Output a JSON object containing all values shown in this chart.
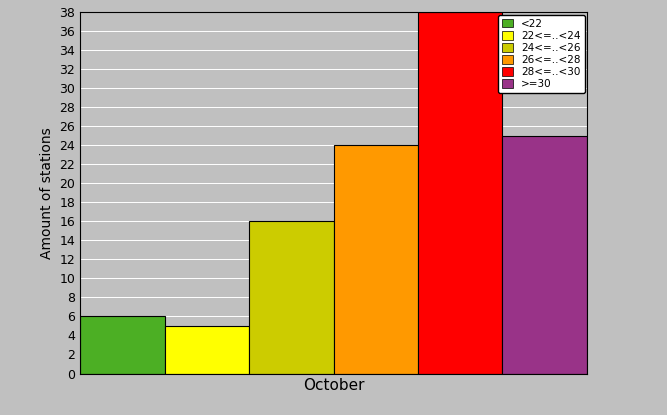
{
  "xlabel": "October",
  "ylabel": "Amount of stations",
  "categories": [
    "<22",
    "22<=..<24",
    "24<=..<26",
    "26<=..<28",
    "28<=..<30",
    ">=30"
  ],
  "values": [
    6,
    5,
    16,
    24,
    38,
    25
  ],
  "colors": [
    "#4caf24",
    "#ffff00",
    "#cccc00",
    "#ff9900",
    "#ff0000",
    "#993388"
  ],
  "legend_labels": [
    "<22",
    "22<=..<24",
    "24<=..<26",
    "26<=..<28",
    "28<=..<30",
    ">=30"
  ],
  "ylim": [
    0,
    38
  ],
  "yticks": [
    0,
    2,
    4,
    6,
    8,
    10,
    12,
    14,
    16,
    18,
    20,
    22,
    24,
    26,
    28,
    30,
    32,
    34,
    36,
    38
  ],
  "background_color": "#c0c0c0",
  "bar_edge_color": "#000000",
  "figsize": [
    6.67,
    4.15
  ],
  "dpi": 100
}
